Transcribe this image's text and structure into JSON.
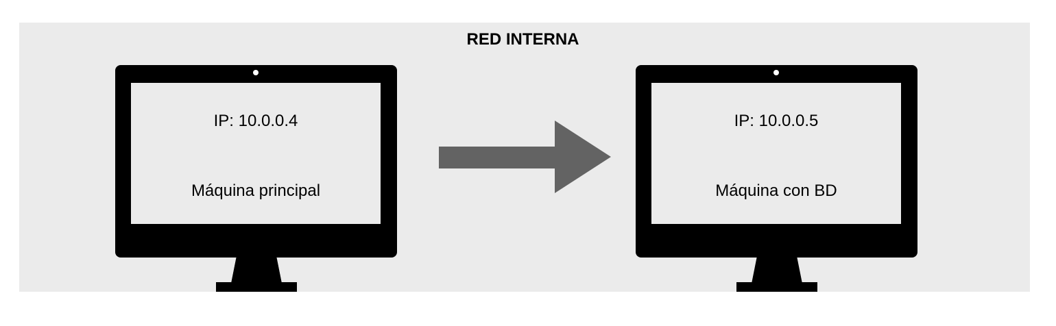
{
  "diagram": {
    "zone_title": "RED INTERNA",
    "colors": {
      "zone_background": "#ebebeb",
      "monitor": "#000000",
      "arrow": "#636363"
    },
    "machines": [
      {
        "ip": "IP: 10.0.0.4",
        "name": "Máquina principal",
        "icon": "monitor-icon"
      },
      {
        "ip": "IP: 10.0.0.5",
        "name": "Máquina con BD",
        "icon": "monitor-icon"
      }
    ],
    "connection": {
      "from": 0,
      "to": 1,
      "icon": "arrow-right-icon"
    }
  }
}
